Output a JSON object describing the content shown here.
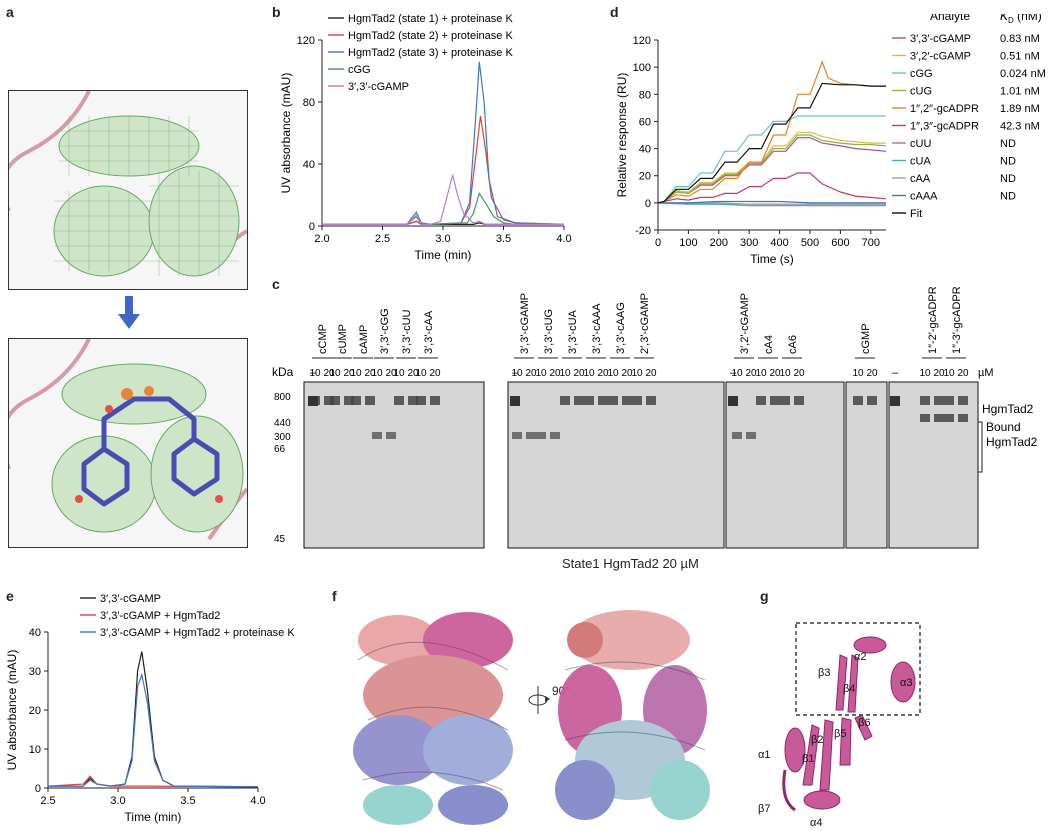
{
  "panels": {
    "a": "a",
    "b": "b",
    "c": "c",
    "d": "d",
    "e": "e",
    "f": "f",
    "g": "g"
  },
  "chart_data": [
    {
      "id": "b",
      "type": "line",
      "ylabel": "UV absorbance (mAU)",
      "xlabel": "Time (min)",
      "xlim": [
        2.0,
        4.0
      ],
      "ylim": [
        0,
        120
      ],
      "xticks": [
        "2.0",
        "2.5",
        "3.0",
        "3.5",
        "4.0"
      ],
      "yticks": [
        "0",
        "40",
        "80",
        "120"
      ],
      "legend_position": "top-left",
      "series": [
        {
          "name": "HgmTad2 (state 1) + proteinase K",
          "color": "#222222",
          "x": [
            2.0,
            2.7,
            2.78,
            2.82,
            2.9,
            3.2,
            3.25,
            3.3,
            3.35,
            3.4,
            3.5,
            4.0
          ],
          "y": [
            1,
            1,
            3,
            1,
            1,
            1,
            1,
            2,
            1,
            1,
            1,
            1
          ]
        },
        {
          "name": "HgmTad2 (state 2) + proteinase K",
          "color": "#e0403a",
          "x": [
            2.0,
            2.7,
            2.78,
            2.82,
            2.9,
            3.15,
            3.22,
            3.27,
            3.31,
            3.35,
            3.4,
            3.5,
            3.6,
            4.0
          ],
          "y": [
            1,
            1,
            3,
            1,
            1,
            2,
            12,
            45,
            71,
            50,
            18,
            4,
            2,
            1
          ]
        },
        {
          "name": "HgmTad2 (state 3) + proteinase K",
          "color": "#3a78c4",
          "x": [
            2.0,
            2.7,
            2.78,
            2.82,
            2.9,
            3.15,
            3.22,
            3.27,
            3.3,
            3.34,
            3.38,
            3.45,
            3.6,
            4.0
          ],
          "y": [
            1,
            1,
            9,
            2,
            1,
            2,
            15,
            70,
            106,
            80,
            30,
            6,
            2,
            1
          ]
        },
        {
          "name": "cGG",
          "color": "#3f9a5a",
          "x": [
            2.0,
            2.7,
            2.78,
            2.82,
            2.9,
            3.2,
            3.25,
            3.3,
            3.35,
            3.42,
            3.5,
            3.6,
            4.0
          ],
          "y": [
            1,
            1,
            6,
            1,
            1,
            2,
            8,
            21,
            15,
            6,
            2,
            1,
            1
          ]
        },
        {
          "name": "3′,3′-cGAMP",
          "color": "#b57ad6",
          "x": [
            2.0,
            2.7,
            2.78,
            2.82,
            2.9,
            2.98,
            3.03,
            3.08,
            3.12,
            3.17,
            3.25,
            3.3,
            3.35,
            4.0
          ],
          "y": [
            1,
            1,
            7,
            1,
            1,
            3,
            18,
            33,
            20,
            8,
            2,
            3,
            1,
            1
          ]
        }
      ]
    },
    {
      "id": "d",
      "type": "line",
      "ylabel": "Relative response (RU)",
      "xlabel": "Time (s)",
      "xlim": [
        0,
        750
      ],
      "ylim": [
        -20,
        120
      ],
      "xticks": [
        "0",
        "100",
        "200",
        "300",
        "400",
        "500",
        "600",
        "700"
      ],
      "yticks": [
        "-20",
        "0",
        "20",
        "40",
        "60",
        "80",
        "100",
        "120"
      ],
      "legend_title": "Analyte",
      "legend_kd_title": "K",
      "legend_kd_sub": "D",
      "legend_kd_unit": "(nM)",
      "legend_position": "right",
      "series": [
        {
          "name": "3′,3′-cGAMP",
          "kd": "0.83 nM",
          "color": "#a64ca6",
          "x": [
            0,
            20,
            60,
            100,
            140,
            180,
            220,
            260,
            300,
            340,
            380,
            420,
            460,
            500,
            540,
            600,
            650,
            700,
            750
          ],
          "y": [
            0,
            1,
            8,
            7,
            13,
            13,
            20,
            20,
            28,
            28,
            38,
            38,
            48,
            48,
            44,
            42,
            40,
            39,
            38
          ]
        },
        {
          "name": "3′,2′-cGAMP",
          "kd": "0.51 nM",
          "color": "#e8b640",
          "x": [
            0,
            20,
            60,
            100,
            140,
            180,
            220,
            260,
            300,
            340,
            380,
            420,
            460,
            500,
            540,
            600,
            650,
            700,
            750
          ],
          "y": [
            0,
            1,
            9,
            8,
            15,
            15,
            22,
            22,
            30,
            30,
            42,
            42,
            52,
            52,
            49,
            46,
            45,
            44,
            44
          ]
        },
        {
          "name": "cGG",
          "kd": "0.024 nM",
          "color": "#5fc4d8",
          "x": [
            0,
            20,
            60,
            100,
            140,
            180,
            220,
            260,
            300,
            340,
            380,
            420,
            460,
            500,
            540,
            600,
            650,
            700,
            750
          ],
          "y": [
            0,
            1,
            12,
            12,
            22,
            22,
            38,
            38,
            50,
            50,
            60,
            60,
            64,
            64,
            64,
            64,
            64,
            64,
            64
          ]
        },
        {
          "name": "cUG",
          "kd": "1.01 nM",
          "color": "#8cb43c",
          "x": [
            0,
            20,
            60,
            100,
            140,
            180,
            220,
            260,
            300,
            340,
            380,
            420,
            460,
            500,
            540,
            600,
            650,
            700,
            750
          ],
          "y": [
            0,
            1,
            8,
            7,
            14,
            14,
            21,
            21,
            29,
            29,
            40,
            40,
            50,
            50,
            46,
            44,
            43,
            43,
            42
          ]
        },
        {
          "name": "1″,2″-gcADPR",
          "kd": "1.89 nM",
          "color": "#e8801a",
          "x": [
            0,
            20,
            60,
            100,
            140,
            180,
            220,
            260,
            300,
            340,
            380,
            420,
            460,
            500,
            540,
            560,
            600,
            650,
            700,
            750
          ],
          "y": [
            0,
            1,
            6,
            5,
            10,
            10,
            18,
            18,
            30,
            30,
            50,
            50,
            80,
            80,
            104,
            92,
            88,
            87,
            86,
            86
          ]
        },
        {
          "name": "1″,3″-gcADPR",
          "kd": "42.3 nM",
          "color": "#c43a5a",
          "x": [
            0,
            20,
            60,
            100,
            140,
            180,
            220,
            260,
            300,
            340,
            380,
            420,
            460,
            500,
            540,
            600,
            650,
            700,
            750
          ],
          "y": [
            0,
            1,
            3,
            2,
            4,
            4,
            7,
            7,
            12,
            12,
            18,
            18,
            22,
            22,
            14,
            8,
            5,
            4,
            3
          ]
        },
        {
          "name": "cUU",
          "kd": "ND",
          "color": "#b06ab0",
          "x": [
            0,
            100,
            200,
            300,
            400,
            500,
            600,
            700,
            750
          ],
          "y": [
            0,
            -1,
            -1,
            -1,
            -1,
            -1,
            -1,
            -1,
            -1
          ]
        },
        {
          "name": "cUA",
          "kd": "ND",
          "color": "#3fb0b8",
          "x": [
            0,
            100,
            200,
            300,
            400,
            500,
            600,
            700,
            750
          ],
          "y": [
            0,
            -1,
            -1,
            -2,
            -2,
            -2,
            -2,
            -2,
            -2
          ]
        },
        {
          "name": "cAA",
          "kd": "ND",
          "color": "#a0a0a0",
          "x": [
            0,
            100,
            200,
            300,
            400,
            500,
            600,
            700,
            750
          ],
          "y": [
            0,
            0,
            0,
            -1,
            -1,
            -1,
            -1,
            -1,
            -1
          ]
        },
        {
          "name": "cAAA",
          "kd": "ND",
          "color": "#3a78c4",
          "x": [
            0,
            100,
            200,
            300,
            400,
            500,
            600,
            700,
            750
          ],
          "y": [
            0,
            0,
            1,
            1,
            1,
            0,
            0,
            0,
            0
          ]
        },
        {
          "name": "Fit",
          "kd": "",
          "color": "#111111",
          "x": [
            0,
            20,
            60,
            100,
            140,
            180,
            220,
            260,
            300,
            340,
            380,
            420,
            460,
            500,
            540,
            600,
            650,
            700,
            750
          ],
          "y": [
            0,
            1,
            10,
            10,
            18,
            18,
            30,
            30,
            40,
            40,
            58,
            58,
            70,
            70,
            88,
            87,
            87,
            86,
            86
          ]
        }
      ]
    },
    {
      "id": "e",
      "type": "line",
      "ylabel": "UV absorbance (mAU)",
      "xlabel": "Time (min)",
      "xlim": [
        2.5,
        4.0
      ],
      "ylim": [
        0,
        40
      ],
      "xticks": [
        "2.5",
        "3.0",
        "3.5",
        "4.0"
      ],
      "yticks": [
        "0",
        "10",
        "20",
        "30",
        "40"
      ],
      "legend_position": "top-left",
      "series": [
        {
          "name": "3′,3′-cGAMP",
          "color": "#222222",
          "x": [
            2.5,
            2.75,
            2.8,
            2.85,
            2.95,
            3.05,
            3.1,
            3.14,
            3.17,
            3.21,
            3.26,
            3.32,
            3.4,
            4.0
          ],
          "y": [
            0.5,
            0.5,
            2.5,
            1,
            0.5,
            1,
            8,
            30,
            35,
            25,
            8,
            2,
            0.5,
            0.3
          ]
        },
        {
          "name": "3′,3′-cGAMP + HgmTad2",
          "color": "#e0403a",
          "x": [
            2.5,
            2.75,
            2.8,
            2.85,
            2.95,
            3.2,
            4.0
          ],
          "y": [
            0.5,
            1,
            3,
            1,
            0.5,
            0.5,
            0.3
          ]
        },
        {
          "name": "3′,3′-cGAMP + HgmTad2 + proteinase K",
          "color": "#3a78c4",
          "x": [
            2.5,
            2.75,
            2.8,
            2.85,
            2.95,
            3.05,
            3.1,
            3.14,
            3.17,
            3.21,
            3.26,
            3.32,
            3.4,
            4.0
          ],
          "y": [
            0.5,
            0.5,
            2,
            1,
            0.5,
            1,
            7,
            26,
            29,
            22,
            7,
            2,
            0.5,
            0.3
          ]
        }
      ]
    }
  ],
  "gel": {
    "kda_label": "kDa",
    "markers": [
      "800",
      "440",
      "300",
      "66",
      "45"
    ],
    "um_label": "µM",
    "dash": "–",
    "conc_labels": [
      "10",
      "20"
    ],
    "lanes_top": [
      "cCMP",
      "cUMP",
      "cAMP",
      "3′,3′-cGG",
      "3′,3′-cUU",
      "3′,3′-cAA",
      "3′,3′-cGAMP",
      "3′,3′-cUG",
      "3′,3′-cUA",
      "3′,3′-cAAA",
      "3′,3′-cAAG",
      "2′,3′-cGAMP",
      "3′,2′-cGAMP",
      "cA4",
      "cA6",
      "cGMP",
      "1″-2′-gcADPR",
      "1″-3′-gcADPR"
    ],
    "right_label_1": "HgmTad2",
    "right_label_2": "Bound",
    "right_label_3": "HgmTad2",
    "caption": "State1 HgmTad2 20 µM"
  },
  "structure": {
    "rotation_label": "90°",
    "g_labels": [
      "α2",
      "β3",
      "β4",
      "α3",
      "β6",
      "β5",
      "β2",
      "α1",
      "β1",
      "β7",
      "α4"
    ]
  }
}
